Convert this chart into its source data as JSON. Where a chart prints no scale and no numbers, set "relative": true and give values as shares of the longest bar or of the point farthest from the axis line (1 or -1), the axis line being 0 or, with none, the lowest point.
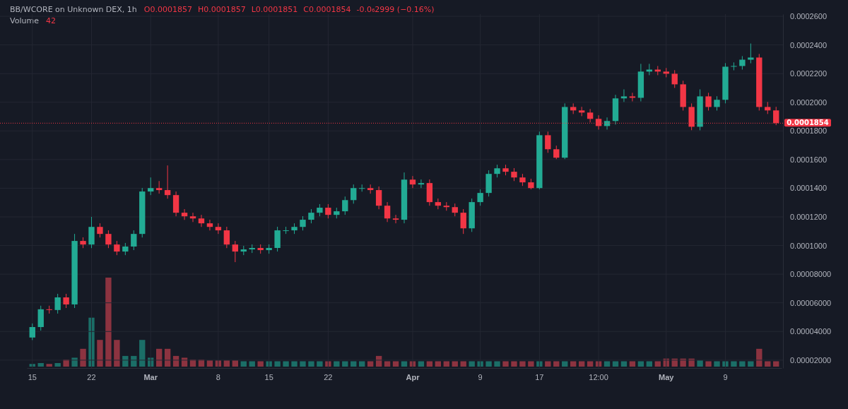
{
  "chart_data": [
    {
      "type": "candlestick",
      "title": "BB/WCORE on Unknown DEX, 1h",
      "annotations": [
        "O0.0001857",
        "H0.0001857",
        "L0.0001851",
        "C0.0001854",
        "-0.0₆2999 (−0.16%)"
      ],
      "categories": [
        "15",
        null,
        null,
        null,
        null,
        null,
        null,
        "22",
        null,
        null,
        null,
        null,
        null,
        null,
        "Mar",
        null,
        null,
        null,
        null,
        null,
        null,
        null,
        "8",
        null,
        null,
        null,
        null,
        null,
        "15",
        null,
        null,
        null,
        null,
        null,
        null,
        "22",
        null,
        null,
        null,
        null,
        null,
        null,
        null,
        null,
        null,
        "Apr",
        null,
        null,
        null,
        null,
        null,
        null,
        null,
        "9",
        null,
        null,
        null,
        null,
        null,
        null,
        "17",
        null,
        null,
        null,
        null,
        null,
        null,
        "12:00",
        null,
        null,
        null,
        null,
        null,
        null,
        null,
        "May",
        null,
        null,
        null,
        null,
        null,
        null,
        "9",
        null,
        null,
        null,
        null,
        null,
        null
      ],
      "ohlc": [
        [
          3.58e-05,
          4.56e-05,
          3.4e-05,
          4.31e-05
        ],
        [
          4.31e-05,
          5.8e-05,
          4.06e-05,
          5.55e-05
        ],
        [
          5.55e-05,
          5.8e-05,
          5.25e-05,
          5.5e-05
        ],
        [
          5.5e-05,
          6.63e-05,
          5.25e-05,
          6.38e-05
        ],
        [
          6.38e-05,
          6.63e-05,
          5.64e-05,
          5.89e-05
        ],
        [
          5.89e-05,
          0.0001081,
          5.64e-05,
          0.0001032
        ],
        [
          0.0001032,
          0.0001057,
          9.82e-05,
          0.0001007
        ],
        [
          0.0001007,
          0.00012,
          9.82e-05,
          0.000113
        ],
        [
          0.000113,
          0.0001155,
          0.0001056,
          0.0001081
        ],
        [
          0.0001081,
          0.0001106,
          9.82e-05,
          0.0001007
        ],
        [
          0.0001007,
          0.0001032,
          9.33e-05,
          9.58e-05
        ],
        [
          9.58e-05,
          0.0001018,
          9.33e-05,
          9.93e-05
        ],
        [
          9.93e-05,
          0.0001106,
          9.68e-05,
          0.0001081
        ],
        [
          0.0001081,
          0.0001402,
          0.0001056,
          0.0001377
        ],
        [
          0.0001377,
          0.0001475,
          0.0001352,
          0.0001401
        ],
        [
          0.0001401,
          0.000145,
          0.0001362,
          0.0001387
        ],
        [
          0.0001387,
          0.0001559,
          0.0001327,
          0.0001352
        ],
        [
          0.0001352,
          0.0001377,
          0.0001204,
          0.0001229
        ],
        [
          0.0001229,
          0.0001254,
          0.0001179,
          0.0001204
        ],
        [
          0.0001204,
          0.0001229,
          0.0001164,
          0.0001189
        ],
        [
          0.0001189,
          0.0001214,
          0.000113,
          0.0001155
        ],
        [
          0.0001155,
          0.000118,
          0.0001105,
          0.000113
        ],
        [
          0.000113,
          0.0001155,
          0.0001081,
          0.0001106
        ],
        [
          0.0001106,
          0.0001131,
          9.82e-05,
          0.0001007
        ],
        [
          0.0001007,
          0.0001032,
          8.84e-05,
          9.58e-05
        ],
        [
          9.58e-05,
          9.98e-05,
          9.33e-05,
          9.73e-05
        ],
        [
          9.73e-05,
          0.0001008,
          9.48e-05,
          9.83e-05
        ],
        [
          9.83e-05,
          0.0001008,
          9.43e-05,
          9.68e-05
        ],
        [
          9.68e-05,
          0.0001008,
          9.43e-05,
          9.83e-05
        ],
        [
          9.83e-05,
          0.0001131,
          9.58e-05,
          0.0001106
        ],
        [
          0.0001106,
          0.0001131,
          0.0001081,
          0.0001106
        ],
        [
          0.0001106,
          0.0001155,
          0.0001081,
          0.000113
        ],
        [
          0.000113,
          0.0001205,
          0.0001105,
          0.000118
        ],
        [
          0.000118,
          0.0001254,
          0.0001155,
          0.0001229
        ],
        [
          0.0001229,
          0.0001289,
          0.0001204,
          0.0001264
        ],
        [
          0.0001264,
          0.0001289,
          0.0001189,
          0.0001214
        ],
        [
          0.0001214,
          0.0001264,
          0.0001189,
          0.0001239
        ],
        [
          0.0001239,
          0.0001342,
          0.0001214,
          0.0001317
        ],
        [
          0.0001317,
          0.0001426,
          0.0001292,
          0.0001401
        ],
        [
          0.0001401,
          0.0001426,
          0.0001376,
          0.0001401
        ],
        [
          0.0001401,
          0.0001426,
          0.0001362,
          0.0001387
        ],
        [
          0.0001387,
          0.0001412,
          0.0001253,
          0.0001278
        ],
        [
          0.0001278,
          0.0001303,
          0.0001164,
          0.0001189
        ],
        [
          0.0001189,
          0.0001214,
          0.0001155,
          0.000118
        ],
        [
          0.000118,
          0.000151,
          0.0001155,
          0.000146
        ],
        [
          0.000146,
          0.0001485,
          0.0001401,
          0.0001426
        ],
        [
          0.0001426,
          0.0001461,
          0.0001401,
          0.0001436
        ],
        [
          0.0001436,
          0.0001461,
          0.0001278,
          0.0001303
        ],
        [
          0.0001303,
          0.0001328,
          0.0001253,
          0.0001278
        ],
        [
          0.0001278,
          0.0001303,
          0.0001243,
          0.0001268
        ],
        [
          0.0001268,
          0.0001293,
          0.0001204,
          0.0001229
        ],
        [
          0.0001229,
          0.0001254,
          0.0001081,
          0.000112
        ],
        [
          0.000112,
          0.0001328,
          0.0001095,
          0.0001303
        ],
        [
          0.0001303,
          0.0001392,
          0.0001278,
          0.0001367
        ],
        [
          0.0001367,
          0.0001525,
          0.0001342,
          0.00015
        ],
        [
          0.00015,
          0.0001564,
          0.0001475,
          0.0001539
        ],
        [
          0.0001539,
          0.0001564,
          0.000149,
          0.0001515
        ],
        [
          0.0001515,
          0.000154,
          0.000145,
          0.0001475
        ],
        [
          0.0001475,
          0.00015,
          0.0001416,
          0.0001441
        ],
        [
          0.0001441,
          0.0001466,
          0.0001392,
          0.0001401
        ],
        [
          0.0001401,
          0.0001795,
          0.0001392,
          0.000177
        ],
        [
          0.000177,
          0.0001795,
          0.0001647,
          0.0001672
        ],
        [
          0.0001672,
          0.0001697,
          0.0001603,
          0.0001613
        ],
        [
          0.0001613,
          0.0001992,
          0.0001603,
          0.0001967
        ],
        [
          0.0001967,
          0.0001992,
          0.0001918,
          0.0001943
        ],
        [
          0.0001943,
          0.0001968,
          0.0001903,
          0.0001928
        ],
        [
          0.0001928,
          0.0001953,
          0.0001859,
          0.0001884
        ],
        [
          0.0001884,
          0.0001909,
          0.0001809,
          0.0001834
        ],
        [
          0.0001834,
          0.0001894,
          0.0001809,
          0.0001869
        ],
        [
          0.0001869,
          0.0002052,
          0.0001844,
          0.0002027
        ],
        [
          0.0002027,
          0.000209,
          0.0002002,
          0.0002041
        ],
        [
          0.0002041,
          0.0002066,
          0.0002006,
          0.0002031
        ],
        [
          0.0002031,
          0.0002268,
          0.0002006,
          0.0002214
        ],
        [
          0.0002214,
          0.0002268,
          0.0002189,
          0.0002228
        ],
        [
          0.0002228,
          0.0002253,
          0.0002189,
          0.0002214
        ],
        [
          0.0002214,
          0.0002239,
          0.0002174,
          0.0002199
        ],
        [
          0.0002199,
          0.0002224,
          0.00021,
          0.0002125
        ],
        [
          0.0002125,
          0.000215,
          0.0001942,
          0.0001967
        ],
        [
          0.0001967,
          0.0001992,
          0.0001805,
          0.0001829
        ],
        [
          0.0001829,
          0.000209,
          0.0001804,
          0.0002041
        ],
        [
          0.0002041,
          0.0002066,
          0.0001942,
          0.0001967
        ],
        [
          0.0001967,
          0.0002042,
          0.0001942,
          0.0002017
        ],
        [
          0.0002017,
          0.0002273,
          0.0001992,
          0.0002248
        ],
        [
          0.0002248,
          0.0002278,
          0.0002223,
          0.0002253
        ],
        [
          0.0002253,
          0.0002322,
          0.0002228,
          0.0002297
        ],
        [
          0.0002297,
          0.000241,
          0.0002272,
          0.0002312
        ],
        [
          0.0002312,
          0.0002337,
          0.0001942,
          0.0001967
        ],
        [
          0.0001967,
          0.0002002,
          0.0001918,
          0.0001943
        ],
        [
          0.0001943,
          0.0001968,
          0.000184,
          0.0001854
        ]
      ],
      "colors": [
        "#22ab94",
        "#22ab94",
        "#f23645",
        "#22ab94",
        "#f23645",
        "#22ab94",
        "#f23645",
        "#22ab94",
        "#f23645",
        "#f23645",
        "#f23645",
        "#22ab94",
        "#22ab94",
        "#22ab94",
        "#22ab94",
        "#f23645",
        "#f23645",
        "#f23645",
        "#f23645",
        "#f23645",
        "#f23645",
        "#f23645",
        "#f23645",
        "#f23645",
        "#f23645",
        "#22ab94",
        "#22ab94",
        "#f23645",
        "#22ab94",
        "#22ab94",
        "#22ab94",
        "#22ab94",
        "#22ab94",
        "#22ab94",
        "#22ab94",
        "#f23645",
        "#22ab94",
        "#22ab94",
        "#22ab94",
        "#22ab94",
        "#f23645",
        "#f23645",
        "#f23645",
        "#f23645",
        "#22ab94",
        "#f23645",
        "#22ab94",
        "#f23645",
        "#f23645",
        "#f23645",
        "#f23645",
        "#f23645",
        "#22ab94",
        "#22ab94",
        "#22ab94",
        "#22ab94",
        "#f23645",
        "#f23645",
        "#f23645",
        "#f23645",
        "#22ab94",
        "#f23645",
        "#f23645",
        "#22ab94",
        "#f23645",
        "#f23645",
        "#f23645",
        "#f23645",
        "#22ab94",
        "#22ab94",
        "#22ab94",
        "#f23645",
        "#22ab94",
        "#22ab94",
        "#f23645",
        "#f23645",
        "#f23645",
        "#f23645",
        "#f23645",
        "#22ab94",
        "#f23645",
        "#22ab94",
        "#22ab94",
        "#22ab94",
        "#22ab94",
        "#22ab94",
        "#f23645",
        "#f23645",
        "#f23645"
      ],
      "ylim": [
        1.45e-05,
        0.0002615
      ],
      "yticks": [
        {
          "value": 2e-05,
          "label": "0.00002000"
        },
        {
          "value": 4e-05,
          "label": "0.00004000"
        },
        {
          "value": 6e-05,
          "label": "0.00006000"
        },
        {
          "value": 8e-05,
          "label": "0.00008000"
        },
        {
          "value": 0.0001,
          "label": "0.0001000"
        },
        {
          "value": 0.00012,
          "label": "0.0001200"
        },
        {
          "value": 0.00014,
          "label": "0.0001400"
        },
        {
          "value": 0.00016,
          "label": "0.0001600"
        },
        {
          "value": 0.00018,
          "label": "0.0001800"
        },
        {
          "value": 0.0002,
          "label": "0.0002000"
        },
        {
          "value": 0.00022,
          "label": "0.0002200"
        },
        {
          "value": 0.00024,
          "label": "0.0002400"
        },
        {
          "value": 0.00026,
          "label": "0.0002600"
        }
      ],
      "grid": true,
      "ref_lines": [
        {
          "axis": "y",
          "value": 0.0001854,
          "label": "0.0001854",
          "color": "#f23645",
          "line_style": "dotted"
        }
      ]
    },
    {
      "type": "bar",
      "title": "Volume",
      "annotations": [
        "42"
      ],
      "relative": true,
      "categories": [
        null,
        null,
        null,
        null,
        null,
        null,
        null,
        null,
        null,
        null,
        null,
        null,
        null,
        null,
        null,
        null,
        null,
        null,
        null,
        null,
        null,
        null,
        null,
        null,
        null,
        null,
        null,
        null,
        null,
        null,
        null,
        null,
        null,
        null,
        null,
        null,
        null,
        null,
        null,
        null,
        null,
        null,
        null,
        null,
        null,
        null,
        null,
        null,
        null,
        null,
        null,
        null,
        null,
        null,
        null,
        null,
        null,
        null,
        null,
        null,
        null,
        null,
        null,
        null,
        null,
        null,
        null,
        null,
        null,
        null,
        null,
        null,
        null,
        null,
        null,
        null,
        null,
        null,
        null,
        null,
        null,
        null,
        null,
        null,
        null,
        null,
        null,
        null,
        null
      ],
      "values": [
        0.03,
        0.04,
        0.03,
        0.04,
        0.08,
        0.1,
        0.2,
        0.55,
        0.3,
        1,
        0.3,
        0.12,
        0.12,
        0.3,
        0.1,
        0.2,
        0.2,
        0.12,
        0.1,
        0.08,
        0.08,
        0.07,
        0.07,
        0.07,
        0.07,
        0.06,
        0.06,
        0.06,
        0.06,
        0.06,
        0.06,
        0.06,
        0.06,
        0.06,
        0.06,
        0.06,
        0.06,
        0.06,
        0.06,
        0.06,
        0.06,
        0.12,
        0.06,
        0.06,
        0.06,
        0.06,
        0.06,
        0.06,
        0.06,
        0.06,
        0.06,
        0.06,
        0.06,
        0.06,
        0.06,
        0.06,
        0.06,
        0.06,
        0.06,
        0.06,
        0.06,
        0.06,
        0.06,
        0.06,
        0.06,
        0.06,
        0.06,
        0.06,
        0.06,
        0.06,
        0.06,
        0.06,
        0.06,
        0.06,
        0.06,
        0.09,
        0.09,
        0.09,
        0.09,
        0.07,
        0.06,
        0.06,
        0.06,
        0.06,
        0.06,
        0.06,
        0.2,
        0.06,
        0.06
      ],
      "colors": [
        "#1b6e67",
        "#1b6e67",
        "#8c3340",
        "#1b6e67",
        "#8c3340",
        "#1b6e67",
        "#8c3340",
        "#1b6e67",
        "#8c3340",
        "#8c3340",
        "#8c3340",
        "#1b6e67",
        "#1b6e67",
        "#1b6e67",
        "#1b6e67",
        "#8c3340",
        "#8c3340",
        "#8c3340",
        "#8c3340",
        "#8c3340",
        "#8c3340",
        "#8c3340",
        "#8c3340",
        "#8c3340",
        "#8c3340",
        "#1b6e67",
        "#1b6e67",
        "#8c3340",
        "#1b6e67",
        "#1b6e67",
        "#1b6e67",
        "#1b6e67",
        "#1b6e67",
        "#1b6e67",
        "#1b6e67",
        "#8c3340",
        "#1b6e67",
        "#1b6e67",
        "#1b6e67",
        "#1b6e67",
        "#8c3340",
        "#8c3340",
        "#8c3340",
        "#8c3340",
        "#1b6e67",
        "#8c3340",
        "#1b6e67",
        "#8c3340",
        "#8c3340",
        "#8c3340",
        "#8c3340",
        "#8c3340",
        "#1b6e67",
        "#1b6e67",
        "#1b6e67",
        "#1b6e67",
        "#8c3340",
        "#8c3340",
        "#8c3340",
        "#8c3340",
        "#1b6e67",
        "#8c3340",
        "#8c3340",
        "#1b6e67",
        "#8c3340",
        "#8c3340",
        "#8c3340",
        "#8c3340",
        "#1b6e67",
        "#1b6e67",
        "#1b6e67",
        "#8c3340",
        "#1b6e67",
        "#1b6e67",
        "#8c3340",
        "#8c3340",
        "#8c3340",
        "#8c3340",
        "#8c3340",
        "#1b6e67",
        "#8c3340",
        "#1b6e67",
        "#1b6e67",
        "#1b6e67",
        "#1b6e67",
        "#1b6e67",
        "#8c3340",
        "#8c3340",
        "#8c3340"
      ]
    }
  ]
}
